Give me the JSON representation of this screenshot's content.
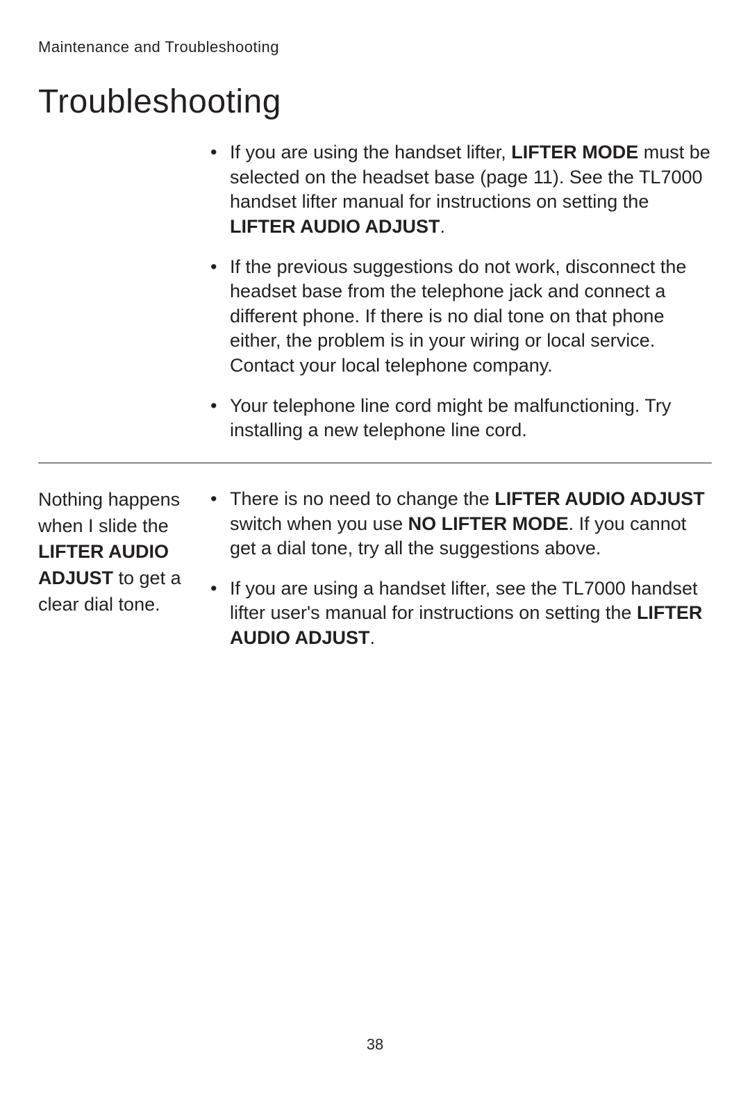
{
  "runningHead": "Maintenance and Troubleshooting",
  "title": "Troubleshooting",
  "pageNumber": "38",
  "rows": [
    {
      "issue_html": "",
      "solutions": [
        "If you are using the handset lifter, <span class=\"b\">LIFTER MODE</span> must be selected on the headset base (page 11). See the TL7000 handset lifter manual for instructions on setting the <span class=\"b\">LIFTER AUDIO ADJUST</span>.",
        "If the previous suggestions do not work, disconnect the headset base from the telephone jack and connect a different phone. If there is no dial tone on that phone either, the problem is in your wiring or local service. Contact your local telephone company.",
        "Your telephone line cord might be malfunctioning. Try installing a new telephone line cord."
      ]
    },
    {
      "issue_html": "Nothing happens when I slide the <span class=\"b\">LIFTER AUDIO ADJUST</span> to get a clear dial tone.",
      "solutions": [
        "There is no need to change the <span class=\"b\">LIFTER AUDIO ADJUST</span> switch when you use <span class=\"b\">NO LIFTER MODE</span>. If you cannot get a dial tone, try all the suggestions above.",
        "If you are using a handset lifter, see the TL7000 handset lifter user's manual for instructions on setting the <span class=\"b\">LIFTER AUDIO ADJUST</span>."
      ]
    }
  ]
}
